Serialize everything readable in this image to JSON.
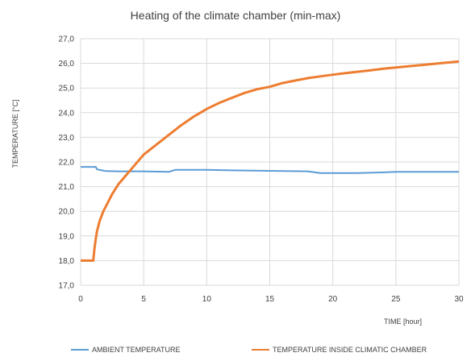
{
  "chart_data": {
    "type": "line",
    "title": "Heating of the climate chamber (min-max)",
    "xlabel": "TIME [hour]",
    "ylabel": "TEMPERATURE [°C]",
    "xlim": [
      0,
      30
    ],
    "ylim": [
      17,
      27
    ],
    "xticks": [
      0,
      5,
      10,
      15,
      20,
      25,
      30
    ],
    "yticks": [
      17,
      18,
      19,
      20,
      21,
      22,
      23,
      24,
      25,
      26,
      27
    ],
    "ytick_labels": [
      "17,0",
      "18,0",
      "19,0",
      "20,0",
      "21,0",
      "22,0",
      "23,0",
      "24,0",
      "25,0",
      "26,0",
      "27,0"
    ],
    "grid": true,
    "legend_position": "bottom",
    "series": [
      {
        "name": "AMBIENT TEMPERATURE",
        "color": "#5B9BD5",
        "x": [
          0,
          1.2,
          1.3,
          2.0,
          3.0,
          5.0,
          7.0,
          7.5,
          10,
          12,
          15,
          18,
          19,
          20,
          22,
          24,
          25,
          28,
          30
        ],
        "y": [
          21.8,
          21.8,
          21.7,
          21.63,
          21.62,
          21.62,
          21.6,
          21.68,
          21.68,
          21.66,
          21.64,
          21.62,
          21.55,
          21.55,
          21.55,
          21.58,
          21.6,
          21.6,
          21.6
        ]
      },
      {
        "name": "TEMPERATURE INSIDE CLIMATIC CHAMBER",
        "color": "#ED7D31",
        "x": [
          0,
          1.0,
          1.1,
          1.2,
          1.3,
          1.5,
          1.8,
          2.0,
          2.5,
          3.0,
          3.5,
          4.0,
          5.0,
          6.0,
          7.0,
          8.0,
          9.0,
          10,
          11,
          12,
          13,
          14,
          15,
          16,
          17,
          18,
          19,
          20,
          21,
          22,
          23,
          24,
          25,
          26,
          27,
          28,
          29,
          30
        ],
        "y": [
          18.0,
          18.0,
          18.5,
          18.9,
          19.2,
          19.6,
          20.0,
          20.2,
          20.7,
          21.1,
          21.4,
          21.7,
          22.3,
          22.7,
          23.1,
          23.5,
          23.85,
          24.15,
          24.4,
          24.6,
          24.8,
          24.95,
          25.05,
          25.2,
          25.3,
          25.4,
          25.47,
          25.54,
          25.6,
          25.66,
          25.72,
          25.78,
          25.83,
          25.88,
          25.93,
          25.98,
          26.03,
          26.08
        ]
      }
    ]
  }
}
